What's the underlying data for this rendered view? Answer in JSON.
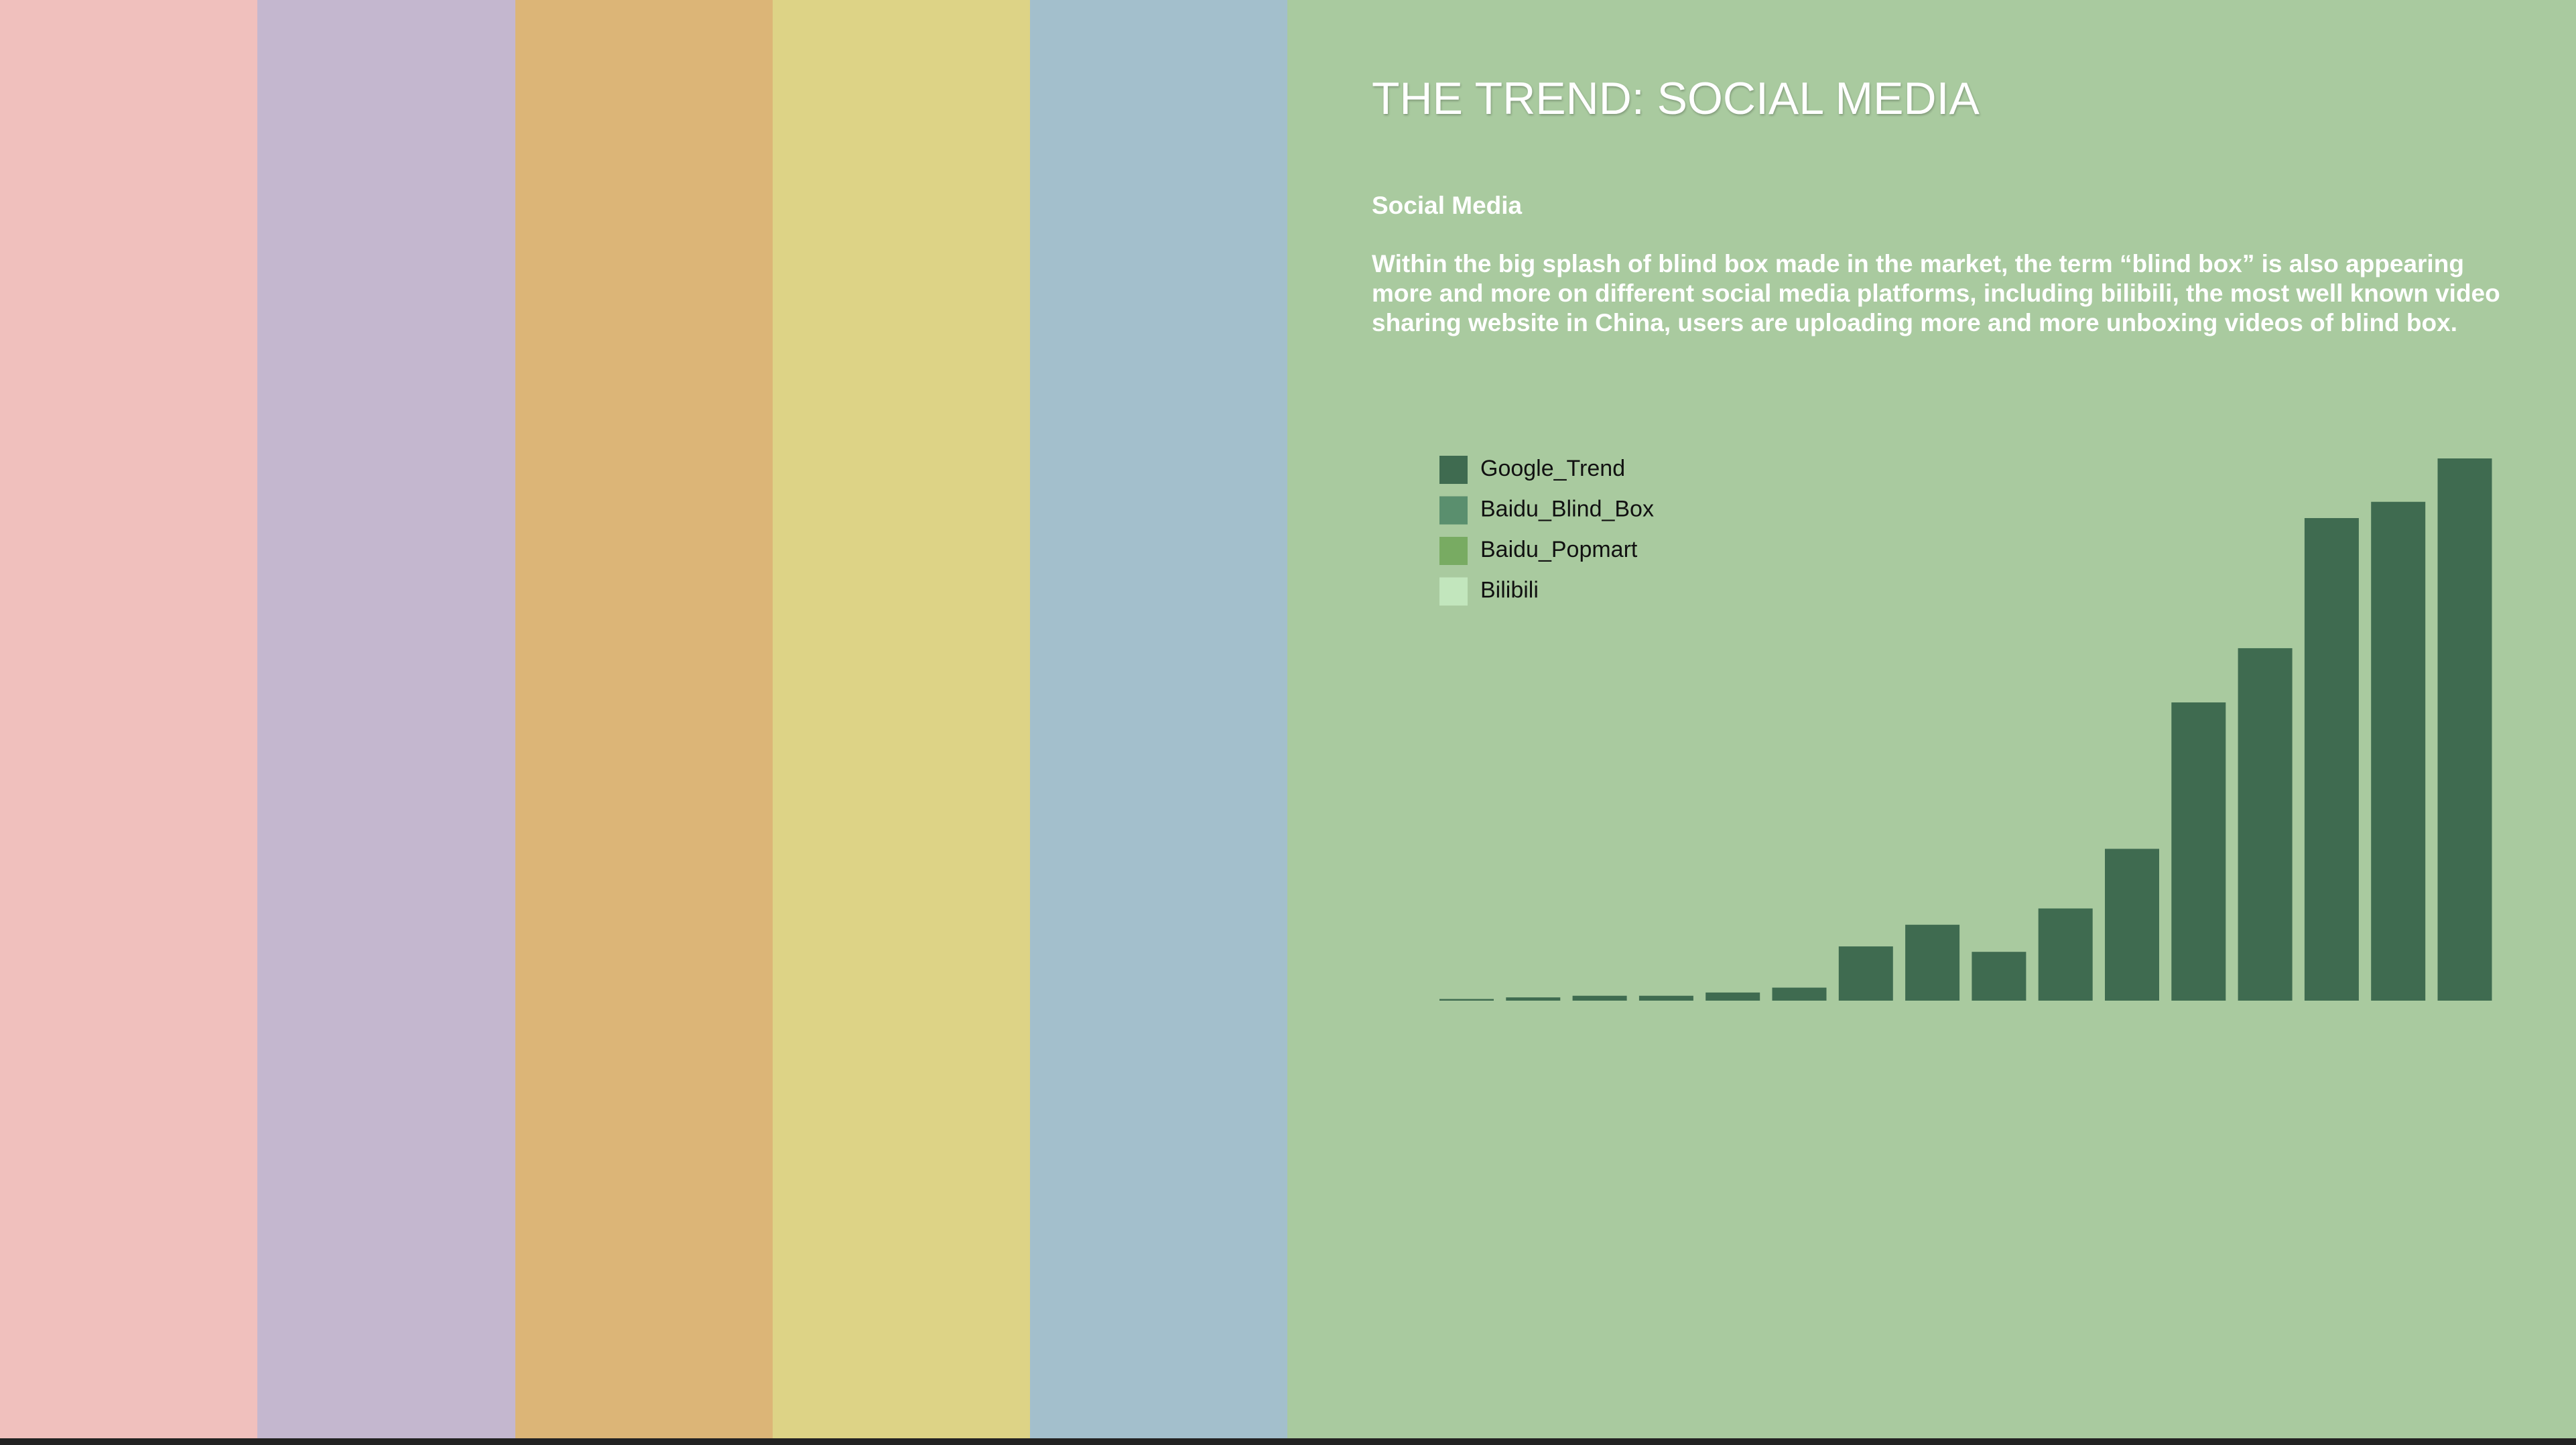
{
  "header": {
    "title": "THE TREND: SOCIAL MEDIA",
    "subtitle": "Social Media",
    "body": "Within the big splash of blind box made in the market, the term “blind box” is also appearing more and more on different social media platforms, including bilibili, the most well known video sharing website in China, users are uploading more and more unboxing videos of blind box."
  },
  "chart_data": {
    "type": "bar",
    "legend": [
      {
        "name": "Google_Trend",
        "color": "#3f6b50"
      },
      {
        "name": "Baidu_Blind_Box",
        "color": "#5a8f6e"
      },
      {
        "name": "Baidu_Popmart",
        "color": "#78ab62"
      },
      {
        "name": "Bilibili",
        "color": "#c2e6bd"
      }
    ],
    "series": [
      {
        "name": "Google_Trend",
        "color": "#3f6b50",
        "values": [
          0.3,
          0.6,
          0.9,
          0.9,
          1.5,
          2.4,
          10,
          14,
          9,
          17,
          28,
          55,
          65,
          89,
          92,
          100
        ]
      }
    ]
  }
}
